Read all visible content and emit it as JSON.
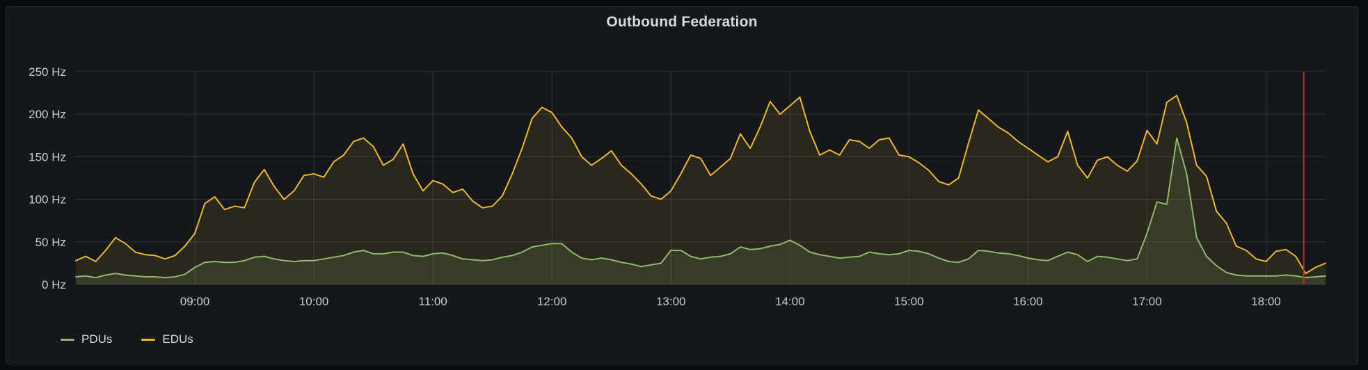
{
  "panel": {
    "title": "Outbound Federation"
  },
  "legend": {
    "items": [
      {
        "label": "PDUs",
        "color": "#8fb96f"
      },
      {
        "label": "EDUs",
        "color": "#eab839"
      }
    ]
  },
  "colors": {
    "page_background": "#0a0b0d",
    "panel_background": "#15171a",
    "panel_border": "#26282d",
    "grid": "rgba(204,204,220,0.16)",
    "axis_text": "#c9cbd1",
    "title_text": "#d8d9da",
    "annotation": "#c22b26",
    "pdu_series": "#8fb96f",
    "edu_series": "#eab839"
  },
  "chart_data": {
    "type": "area",
    "title": "Outbound Federation",
    "unit": "Hz",
    "ylim": [
      0,
      250
    ],
    "grid": true,
    "legend_position": "bottom-left",
    "x_range": [
      "08:00",
      "18:30"
    ],
    "x_ticks": [
      "09:00",
      "10:00",
      "11:00",
      "12:00",
      "13:00",
      "14:00",
      "15:00",
      "16:00",
      "17:00",
      "18:00"
    ],
    "y_ticks": [
      {
        "value": 0,
        "label": "0 Hz"
      },
      {
        "value": 50,
        "label": "50 Hz"
      },
      {
        "value": 100,
        "label": "100 Hz"
      },
      {
        "value": 150,
        "label": "150 Hz"
      },
      {
        "value": 200,
        "label": "200 Hz"
      },
      {
        "value": 250,
        "label": "250 Hz"
      }
    ],
    "annotations": [
      {
        "type": "vline",
        "time": "18:19",
        "color": "#c22b26",
        "width": 2
      }
    ],
    "x": [
      "08:00",
      "08:05",
      "08:10",
      "08:15",
      "08:20",
      "08:25",
      "08:30",
      "08:35",
      "08:40",
      "08:45",
      "08:50",
      "08:55",
      "09:00",
      "09:05",
      "09:10",
      "09:15",
      "09:20",
      "09:25",
      "09:30",
      "09:35",
      "09:40",
      "09:45",
      "09:50",
      "09:55",
      "10:00",
      "10:05",
      "10:10",
      "10:15",
      "10:20",
      "10:25",
      "10:30",
      "10:35",
      "10:40",
      "10:45",
      "10:50",
      "10:55",
      "11:00",
      "11:05",
      "11:10",
      "11:15",
      "11:20",
      "11:25",
      "11:30",
      "11:35",
      "11:40",
      "11:45",
      "11:50",
      "11:55",
      "12:00",
      "12:05",
      "12:10",
      "12:15",
      "12:20",
      "12:25",
      "12:30",
      "12:35",
      "12:40",
      "12:45",
      "12:50",
      "12:55",
      "13:00",
      "13:05",
      "13:10",
      "13:15",
      "13:20",
      "13:25",
      "13:30",
      "13:35",
      "13:40",
      "13:45",
      "13:50",
      "13:55",
      "14:00",
      "14:05",
      "14:10",
      "14:15",
      "14:20",
      "14:25",
      "14:30",
      "14:35",
      "14:40",
      "14:45",
      "14:50",
      "14:55",
      "15:00",
      "15:05",
      "15:10",
      "15:15",
      "15:20",
      "15:25",
      "15:30",
      "15:35",
      "15:40",
      "15:45",
      "15:50",
      "15:55",
      "16:00",
      "16:05",
      "16:10",
      "16:15",
      "16:20",
      "16:25",
      "16:30",
      "16:35",
      "16:40",
      "16:45",
      "16:50",
      "16:55",
      "17:00",
      "17:05",
      "17:10",
      "17:15",
      "17:20",
      "17:25",
      "17:30",
      "17:35",
      "17:40",
      "17:45",
      "17:50",
      "17:55",
      "18:00",
      "18:05",
      "18:10",
      "18:15",
      "18:20",
      "18:25",
      "18:30"
    ],
    "series": [
      {
        "name": "EDUs",
        "color": "#eab839",
        "fill_opacity": 0.1,
        "values": [
          28,
          33,
          27,
          40,
          55,
          48,
          38,
          35,
          34,
          30,
          34,
          45,
          60,
          95,
          103,
          88,
          92,
          90,
          120,
          135,
          115,
          100,
          110,
          128,
          130,
          126,
          144,
          152,
          168,
          172,
          162,
          140,
          147,
          165,
          130,
          110,
          122,
          118,
          108,
          112,
          98,
          90,
          92,
          104,
          130,
          160,
          195,
          208,
          202,
          185,
          172,
          150,
          140,
          148,
          157,
          140,
          130,
          118,
          104,
          100,
          110,
          130,
          152,
          148,
          128,
          138,
          148,
          177,
          160,
          185,
          215,
          200,
          210,
          220,
          180,
          152,
          158,
          152,
          170,
          168,
          160,
          170,
          172,
          152,
          150,
          143,
          134,
          121,
          117,
          125,
          166,
          205,
          195,
          185,
          178,
          168,
          160,
          152,
          144,
          150,
          180,
          140,
          125,
          146,
          150,
          140,
          133,
          145,
          181,
          165,
          214,
          222,
          190,
          140,
          127,
          86,
          72,
          45,
          40,
          30,
          27,
          39,
          41,
          33,
          13,
          20,
          25
        ]
      },
      {
        "name": "PDUs",
        "color": "#8fb96f",
        "fill_opacity": 0.14,
        "values": [
          9,
          10,
          8,
          11,
          13,
          11,
          10,
          9,
          9,
          8,
          9,
          12,
          20,
          26,
          27,
          26,
          26,
          28,
          32,
          33,
          30,
          28,
          27,
          28,
          28,
          30,
          32,
          34,
          38,
          40,
          36,
          36,
          38,
          38,
          34,
          33,
          36,
          37,
          34,
          30,
          29,
          28,
          29,
          32,
          34,
          38,
          44,
          46,
          48,
          48,
          38,
          31,
          29,
          31,
          29,
          26,
          24,
          21,
          23,
          25,
          40,
          40,
          33,
          30,
          32,
          33,
          36,
          44,
          41,
          42,
          45,
          47,
          52,
          46,
          38,
          35,
          33,
          31,
          32,
          33,
          38,
          36,
          35,
          36,
          40,
          39,
          36,
          31,
          27,
          26,
          30,
          40,
          39,
          37,
          36,
          34,
          31,
          29,
          28,
          33,
          38,
          35,
          27,
          33,
          32,
          30,
          28,
          30,
          60,
          97,
          94,
          172,
          130,
          55,
          33,
          22,
          14,
          11,
          10,
          10,
          10,
          10,
          11,
          10,
          8,
          9,
          10
        ]
      }
    ]
  }
}
